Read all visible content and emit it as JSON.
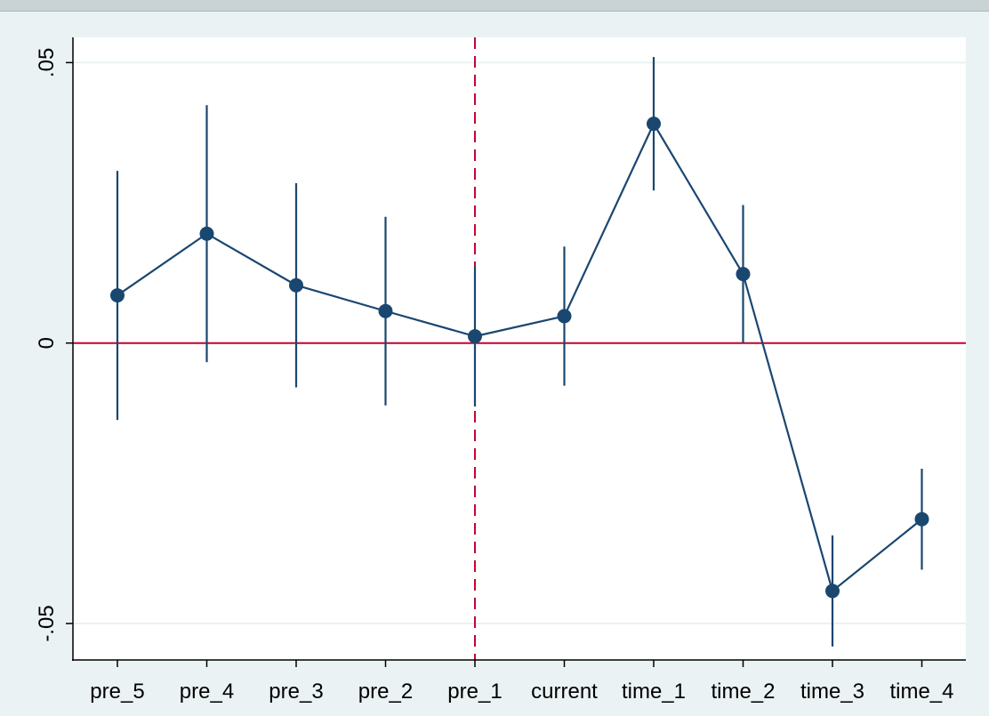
{
  "chart_data": {
    "type": "line",
    "title": "",
    "xlabel": "",
    "ylabel": "",
    "categories": [
      "pre_5",
      "pre_4",
      "pre_3",
      "pre_2",
      "pre_1",
      "current",
      "time_1",
      "time_2",
      "time_3",
      "time_4"
    ],
    "series": [
      {
        "values": [
          0.0085,
          0.0195,
          0.0103,
          0.0057,
          0.0012,
          0.0048,
          0.0391,
          0.0123,
          -0.0442,
          -0.0314
        ],
        "ci_lower": [
          -0.0137,
          -0.0034,
          -0.0079,
          -0.0111,
          -0.0113,
          -0.0076,
          0.0272,
          0.0,
          -0.0541,
          -0.0404
        ],
        "ci_upper": [
          0.0307,
          0.0424,
          0.0285,
          0.0225,
          0.0137,
          0.0172,
          0.051,
          0.0246,
          -0.0343,
          -0.0224
        ],
        "color": "#1a476f"
      }
    ],
    "ylim": [
      -0.0565,
      0.0545
    ],
    "yticks": [
      {
        "value": -0.05,
        "label": "-.05"
      },
      {
        "value": 0,
        "label": "0"
      },
      {
        "value": 0.05,
        "label": ".05"
      }
    ],
    "reference_lines": {
      "horizontal": {
        "value": 0,
        "color": "#c10534",
        "style": "solid"
      },
      "vertical": {
        "category": "pre_1",
        "color": "#c10534",
        "style": "dashed"
      }
    },
    "grid": true,
    "plot_background": "#ffffff",
    "outer_background": "#eaf2f3",
    "legend": "none"
  }
}
